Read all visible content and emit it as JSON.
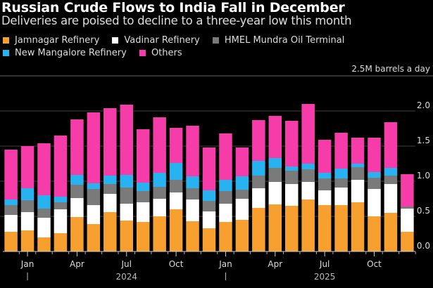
{
  "chart_data": {
    "type": "bar",
    "stacked": true,
    "title": "Russian Crude Flows to India Fall in December",
    "subtitle": "Deliveries are poised to decline to a three-year low this month",
    "unit_label": "2.5M barrels a day",
    "categories": [
      "Dec 2023",
      "Jan 2024",
      "Feb 2024",
      "Mar 2024",
      "Apr 2024",
      "May 2024",
      "Jun 2024",
      "Jul 2024",
      "Aug 2024",
      "Sep 2024",
      "Oct 2024",
      "Nov 2024",
      "Dec 2024",
      "Jan 2025",
      "Feb 2025",
      "Mar 2025",
      "Apr 2025",
      "May 2025",
      "Jun 2025",
      "Jul 2025",
      "Aug 2025",
      "Sep 2025",
      "Oct 2025",
      "Nov 2025",
      "Dec 2025"
    ],
    "x_tick_labels": [
      {
        "label": "Jan",
        "category": "Jan 2024"
      },
      {
        "label": "Apr",
        "category": "Apr 2024"
      },
      {
        "label": "Jul",
        "category": "Jul 2024"
      },
      {
        "label": "Oct",
        "category": "Oct 2024"
      },
      {
        "label": "Jan",
        "category": "Jan 2025"
      },
      {
        "label": "Apr",
        "category": "Apr 2025"
      },
      {
        "label": "Jul",
        "category": "Jul 2025"
      },
      {
        "label": "Oct",
        "category": "Oct 2025"
      }
    ],
    "year_labels": [
      {
        "label": "2024",
        "category": "Jul 2024"
      },
      {
        "label": "2025",
        "category": "Jul 2025"
      }
    ],
    "ylim": [
      0,
      2.5
    ],
    "y_ticks": [
      "0.0",
      "0.5",
      "1.0",
      "1.5",
      "2.0"
    ],
    "y_axis_position": "right",
    "grid": true,
    "legend_position": "top-left",
    "series": [
      {
        "name": "Jamnagar Refinery",
        "color": "#f7a030",
        "values": [
          0.28,
          0.3,
          0.2,
          0.26,
          0.49,
          0.39,
          0.56,
          0.44,
          0.42,
          0.5,
          0.6,
          0.43,
          0.33,
          0.42,
          0.45,
          0.62,
          0.67,
          0.65,
          0.74,
          0.66,
          0.66,
          0.7,
          0.5,
          0.55,
          0.28
        ]
      },
      {
        "name": "Vadinar Refinery",
        "color": "#ffffff",
        "values": [
          0.24,
          0.26,
          0.28,
          0.34,
          0.27,
          0.27,
          0.26,
          0.24,
          0.28,
          0.25,
          0.24,
          0.31,
          0.24,
          0.26,
          0.3,
          0.28,
          0.32,
          0.31,
          0.25,
          0.21,
          0.25,
          0.32,
          0.39,
          0.41,
          0.33
        ]
      },
      {
        "name": "HMEL Mundra Oil Terminal",
        "color": "#7a7a7a",
        "values": [
          0.14,
          0.17,
          0.13,
          0.1,
          0.19,
          0.23,
          0.14,
          0.23,
          0.16,
          0.17,
          0.18,
          0.16,
          0.15,
          0.18,
          0.13,
          0.18,
          0.2,
          0.19,
          0.18,
          0.17,
          0.13,
          0.18,
          0.16,
          0.12,
          0.03
        ]
      },
      {
        "name": "New Mangalore Refinery",
        "color": "#27b2f0",
        "values": [
          0.08,
          0.17,
          0.19,
          0.08,
          0.14,
          0.08,
          0.12,
          0.18,
          0.12,
          0.2,
          0.24,
          0.17,
          0.15,
          0.16,
          0.19,
          0.21,
          0.14,
          0.06,
          0.08,
          0.08,
          0.14,
          0.05,
          0.08,
          0.11,
          0.0
        ]
      },
      {
        "name": "Others",
        "color": "#f53ca9",
        "values": [
          0.71,
          0.6,
          0.74,
          0.87,
          0.79,
          1.01,
          0.96,
          1.0,
          0.76,
          0.79,
          0.5,
          0.72,
          0.61,
          0.66,
          0.41,
          0.58,
          0.6,
          0.65,
          0.85,
          0.47,
          0.51,
          0.37,
          0.49,
          0.65,
          0.46
        ]
      }
    ]
  }
}
